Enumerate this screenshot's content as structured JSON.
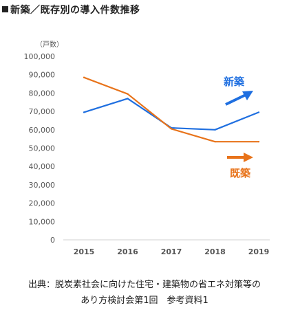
{
  "title": "新築／既存別の導入件数推移",
  "source_line1": "出典：脱炭素社会に向けた住宅・建築物の省エネ対策等の",
  "source_line2": "あり方検討会第1回　参考資料1",
  "chart_data": {
    "type": "line",
    "unit_label": "（戸数）",
    "x": [
      "2015",
      "2016",
      "2017",
      "2018",
      "2019"
    ],
    "ylim": [
      0,
      100000
    ],
    "yticks": [
      "0",
      "10,000",
      "20,000",
      "30,000",
      "40,000",
      "50,000",
      "60,000",
      "70,000",
      "80,000",
      "90,000",
      "100,000"
    ],
    "grid": false,
    "series": [
      {
        "name": "新築",
        "values": [
          69500,
          77000,
          61000,
          60000,
          69500
        ],
        "color": "#1f6fe0",
        "trend": "up"
      },
      {
        "name": "既築",
        "values": [
          88500,
          79500,
          60500,
          53500,
          53500
        ],
        "color": "#e8731a",
        "trend": "flat"
      }
    ]
  }
}
